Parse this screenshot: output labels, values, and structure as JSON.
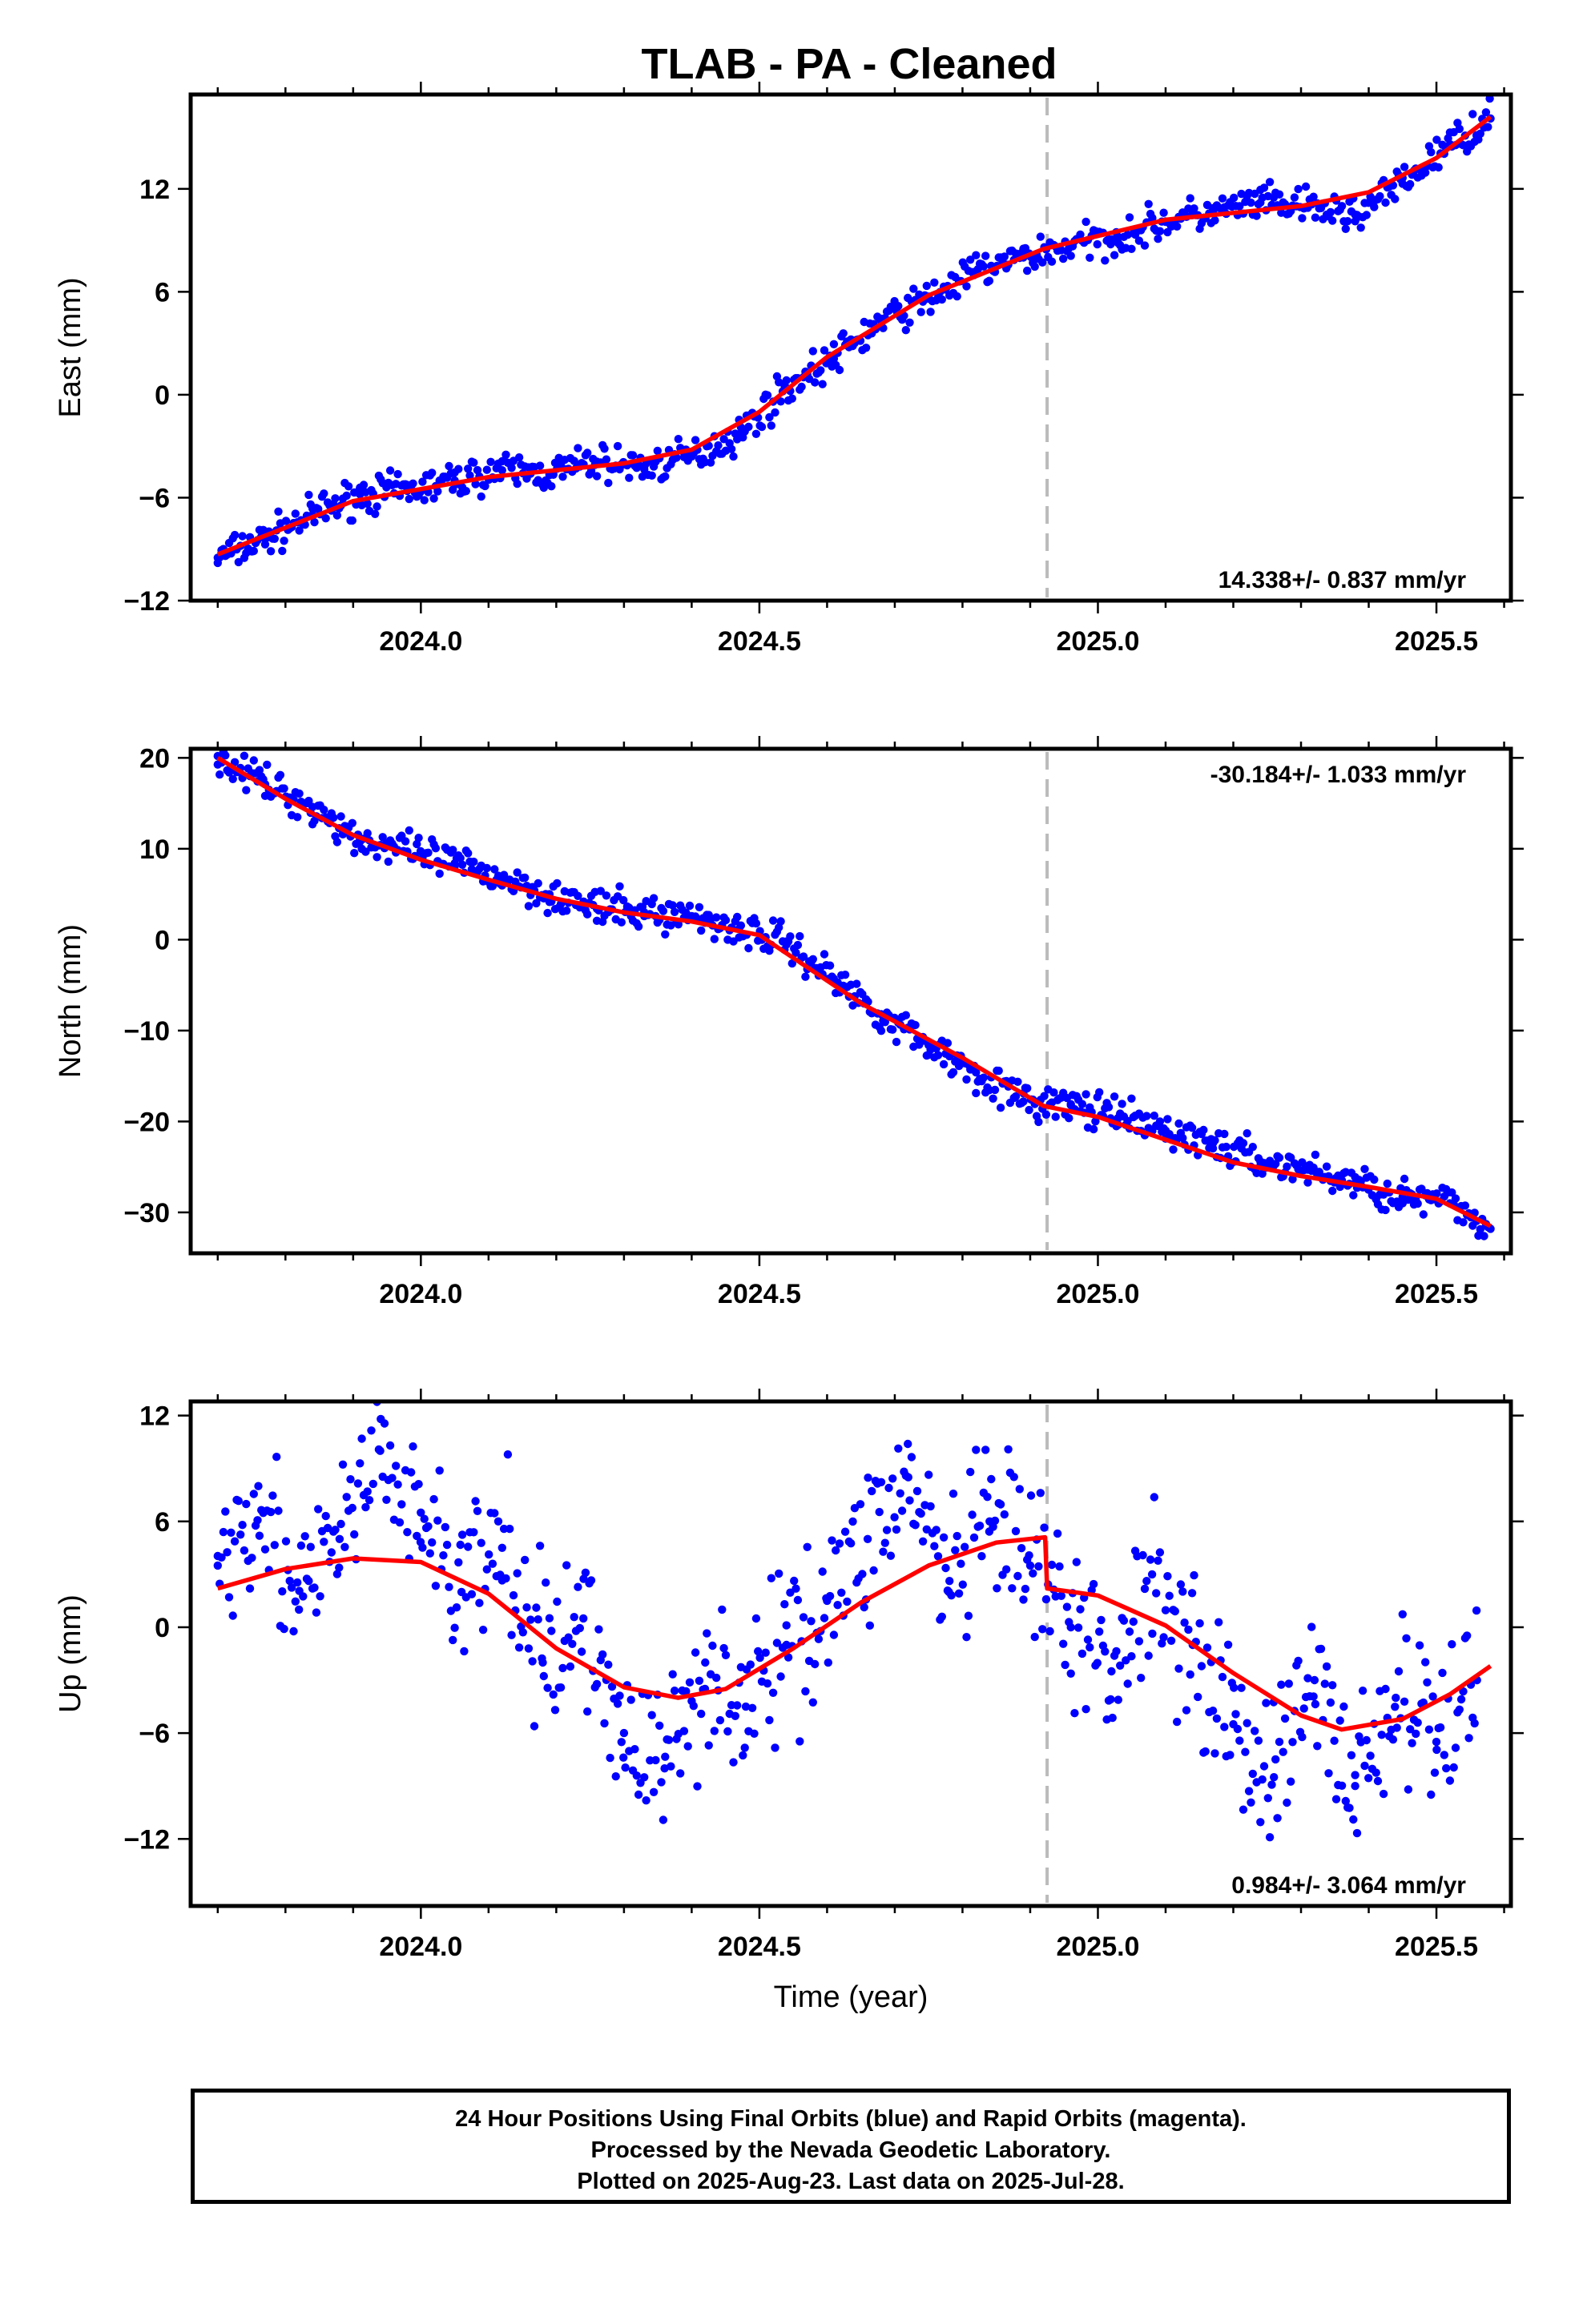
{
  "title": "TLAB  - PA - Cleaned",
  "footer": {
    "line1": "24 Hour Positions Using Final Orbits (blue) and Rapid Orbits (magenta).",
    "line2": "Processed by the Nevada Geodetic Laboratory.",
    "line3": "Plotted on 2025-Aug-23. Last data on 2025-Jul-28."
  },
  "colors": {
    "final_points": "#0000ff",
    "model_fit": "#ff0000",
    "break_line": "#bbbbbb"
  },
  "chart_data": [
    {
      "type": "scatter",
      "ylabel": "East (mm)",
      "xlabel": "",
      "xlim": [
        2023.66,
        2025.61
      ],
      "ylim": [
        -12,
        17.5
      ],
      "xticks": [
        2024.0,
        2024.5,
        2025.0,
        2025.5
      ],
      "xtick_labels": [
        "2024.0",
        "2024.5",
        "2025.0",
        "2025.5"
      ],
      "yticks": [
        -12,
        -6,
        0,
        6,
        12
      ],
      "ytick_labels": [
        "−12",
        "−6",
        "0",
        "6",
        "12"
      ],
      "rate_label": "14.338+/- 0.837 mm/yr",
      "rate_position": "bottom-right",
      "break_epoch": 2024.925,
      "model": {
        "x": [
          2023.7,
          2023.9,
          2024.1,
          2024.3,
          2024.4,
          2024.5,
          2024.6,
          2024.75,
          2024.92,
          2025.1,
          2025.3,
          2025.4,
          2025.5,
          2025.58
        ],
        "y": [
          -9.3,
          -6.2,
          -4.8,
          -4.0,
          -3.2,
          -1.0,
          2.2,
          5.8,
          8.5,
          10.2,
          11.0,
          11.8,
          13.8,
          16.2
        ]
      },
      "points": {
        "x": [
          2023.7,
          2023.77,
          2023.84,
          2023.91,
          2023.98,
          2024.05,
          2024.12,
          2024.19,
          2024.26,
          2024.33,
          2024.4,
          2024.47,
          2024.54,
          2024.61,
          2024.68,
          2024.75,
          2024.82,
          2024.89,
          2024.96,
          2025.03,
          2025.1,
          2025.17,
          2025.24,
          2025.31,
          2025.38,
          2025.45,
          2025.52,
          2025.58
        ],
        "y": [
          -9.5,
          -8.4,
          -7.0,
          -5.8,
          -5.6,
          -5.0,
          -4.4,
          -4.6,
          -3.9,
          -4.2,
          -3.6,
          -2.3,
          0.4,
          2.1,
          4.3,
          5.6,
          7.2,
          8.0,
          8.7,
          9.2,
          10.1,
          10.6,
          11.2,
          10.9,
          10.5,
          12.3,
          14.6,
          16.1
        ]
      }
    },
    {
      "type": "scatter",
      "ylabel": "North (mm)",
      "xlabel": "",
      "xlim": [
        2023.66,
        2025.61
      ],
      "ylim": [
        -34.5,
        21
      ],
      "xticks": [
        2024.0,
        2024.5,
        2025.0,
        2025.5
      ],
      "xtick_labels": [
        "2024.0",
        "2024.5",
        "2025.0",
        "2025.5"
      ],
      "yticks": [
        -30,
        -20,
        -10,
        0,
        10,
        20
      ],
      "ytick_labels": [
        "−30",
        "−20",
        "−10",
        "0",
        "10",
        "20"
      ],
      "rate_label": "-30.184+/- 1.033 mm/yr",
      "rate_position": "top-right",
      "break_epoch": 2024.925,
      "model": {
        "x": [
          2023.7,
          2023.8,
          2023.9,
          2024.0,
          2024.1,
          2024.2,
          2024.3,
          2024.4,
          2024.5,
          2024.55,
          2024.65,
          2024.8,
          2024.92,
          2025.0,
          2025.1,
          2025.2,
          2025.3,
          2025.4,
          2025.5,
          2025.58
        ],
        "y": [
          20.0,
          15.5,
          11.5,
          8.8,
          6.6,
          4.5,
          3.0,
          2.0,
          0.5,
          -2.0,
          -7.0,
          -13.0,
          -18.3,
          -19.5,
          -22.0,
          -24.5,
          -26.0,
          -27.2,
          -28.5,
          -31.5
        ]
      },
      "points": {
        "x": [
          2023.7,
          2023.77,
          2023.84,
          2023.91,
          2023.98,
          2024.05,
          2024.12,
          2024.19,
          2024.26,
          2024.33,
          2024.4,
          2024.47,
          2024.54,
          2024.61,
          2024.68,
          2024.75,
          2024.82,
          2024.89,
          2024.96,
          2025.03,
          2025.1,
          2025.17,
          2025.24,
          2025.31,
          2025.38,
          2025.45,
          2025.52,
          2025.58
        ],
        "y": [
          20.2,
          17.1,
          14.6,
          11.0,
          9.6,
          8.4,
          6.8,
          5.0,
          3.4,
          3.0,
          2.6,
          1.2,
          -0.2,
          -4.3,
          -8.2,
          -11.6,
          -14.6,
          -17.8,
          -18.2,
          -19.6,
          -21.0,
          -22.4,
          -24.4,
          -25.3,
          -26.8,
          -28.3,
          -29.0,
          -31.8
        ]
      }
    },
    {
      "type": "scatter",
      "ylabel": "Up (mm)",
      "xlabel": "Time (year)",
      "xlim": [
        2023.66,
        2025.61
      ],
      "ylim": [
        -15.8,
        12.8
      ],
      "xticks": [
        2024.0,
        2024.5,
        2025.0,
        2025.5
      ],
      "xtick_labels": [
        "2024.0",
        "2024.5",
        "2025.0",
        "2025.5"
      ],
      "yticks": [
        -12,
        -6,
        0,
        6,
        12
      ],
      "ytick_labels": [
        "−12",
        "−6",
        "0",
        "6",
        "12"
      ],
      "rate_label": "0.984+/- 3.064 mm/yr",
      "rate_position": "bottom-right",
      "break_epoch": 2024.925,
      "model": {
        "x": [
          2023.7,
          2023.8,
          2023.9,
          2024.0,
          2024.1,
          2024.2,
          2024.3,
          2024.38,
          2024.45,
          2024.55,
          2024.65,
          2024.75,
          2024.85,
          2024.922,
          2024.925,
          2025.0,
          2025.1,
          2025.2,
          2025.3,
          2025.36,
          2025.45,
          2025.52,
          2025.58
        ],
        "y": [
          2.2,
          3.3,
          3.9,
          3.7,
          1.9,
          -1.2,
          -3.4,
          -4.0,
          -3.5,
          -1.2,
          1.4,
          3.5,
          4.8,
          5.1,
          2.2,
          1.8,
          0.1,
          -2.6,
          -5.0,
          -5.8,
          -5.2,
          -3.8,
          -2.2
        ]
      },
      "points": {
        "x": [
          2023.7,
          2023.76,
          2023.82,
          2023.88,
          2023.94,
          2024.0,
          2024.06,
          2024.12,
          2024.18,
          2024.24,
          2024.3,
          2024.36,
          2024.42,
          2024.48,
          2024.54,
          2024.6,
          2024.66,
          2024.72,
          2024.78,
          2024.84,
          2024.9,
          2024.96,
          2025.02,
          2025.08,
          2025.14,
          2025.2,
          2025.26,
          2025.32,
          2025.38,
          2025.44,
          2025.5,
          2025.56
        ],
        "y": [
          3.5,
          8.0,
          1.0,
          5.0,
          10.0,
          6.5,
          2.0,
          4.5,
          -2.0,
          0.5,
          -6.0,
          -8.0,
          -2.0,
          -4.5,
          -1.0,
          1.5,
          5.0,
          8.5,
          2.0,
          6.0,
          3.5,
          0.0,
          -2.5,
          3.0,
          -1.0,
          -5.5,
          -8.5,
          -3.0,
          -9.0,
          -4.0,
          -6.5,
          -3.0
        ]
      }
    }
  ]
}
